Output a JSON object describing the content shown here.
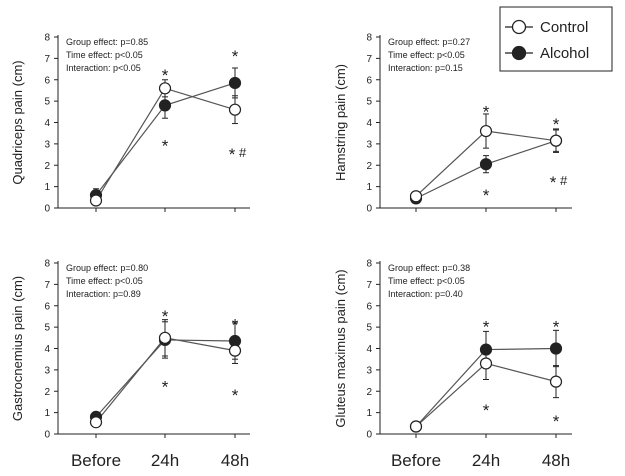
{
  "legend": {
    "items": [
      {
        "label": "Control",
        "fill": "#ffffff"
      },
      {
        "label": "Alcohol",
        "fill": "#222222"
      }
    ]
  },
  "x_categories": [
    "Before",
    "24h",
    "48h"
  ],
  "colors": {
    "line": "#555555",
    "ink": "#222222",
    "open": "#ffffff",
    "filled": "#222222"
  },
  "chart_data": [
    {
      "type": "line",
      "ylabel": "Quadriceps pain (cm)",
      "ylim": [
        0,
        8
      ],
      "yticks": [
        "0",
        "1",
        "2",
        "3",
        "4",
        "5",
        "6",
        "7",
        "8"
      ],
      "categories": [
        "Before",
        "24h",
        "48h"
      ],
      "stats": [
        "Group effect: p=0.85",
        "Time effect: p<0.05",
        "Interaction: p<0.05"
      ],
      "series": [
        {
          "name": "Control",
          "values": [
            0.35,
            5.6,
            4.6
          ],
          "errors": [
            0.15,
            0.4,
            0.65
          ]
        },
        {
          "name": "Alcohol",
          "values": [
            0.6,
            4.8,
            5.85
          ],
          "errors": [
            0.3,
            0.6,
            0.7
          ]
        }
      ],
      "annotations": [
        {
          "x": 1,
          "y": 6.5,
          "text": "*"
        },
        {
          "x": 1,
          "y": 3.2,
          "text": "*"
        },
        {
          "x": 2,
          "y": 7.4,
          "text": "*"
        },
        {
          "x": 2,
          "y": 2.8,
          "text": "*",
          "suffix": "#"
        }
      ]
    },
    {
      "type": "line",
      "ylabel": "Hamstring pain (cm)",
      "ylim": [
        0,
        8
      ],
      "yticks": [
        "0",
        "1",
        "2",
        "3",
        "4",
        "5",
        "6",
        "7",
        "8"
      ],
      "categories": [
        "Before",
        "24h",
        "48h"
      ],
      "stats": [
        "Group effect: p=0.27",
        "Time effect: p<0.05",
        "Interaction: p=0.15"
      ],
      "series": [
        {
          "name": "Control",
          "values": [
            0.55,
            3.6,
            3.15
          ],
          "errors": [
            0.1,
            0.8,
            0.5
          ]
        },
        {
          "name": "Alcohol",
          "values": [
            0.45,
            2.05,
            3.15
          ],
          "errors": [
            0.1,
            0.4,
            0.55
          ]
        }
      ],
      "annotations": [
        {
          "x": 1,
          "y": 4.8,
          "text": "*"
        },
        {
          "x": 1,
          "y": 0.9,
          "text": "*"
        },
        {
          "x": 2,
          "y": 4.2,
          "text": "*"
        },
        {
          "x": 2,
          "y": 1.5,
          "text": "*",
          "suffix": "#"
        }
      ]
    },
    {
      "type": "line",
      "ylabel": "Gastrocnemius pain (cm)",
      "ylim": [
        0,
        8
      ],
      "yticks": [
        "0",
        "1",
        "2",
        "3",
        "4",
        "5",
        "6",
        "7",
        "8"
      ],
      "categories": [
        "Before",
        "24h",
        "48h"
      ],
      "stats": [
        "Group effect: p=0.80",
        "Time effect: p<0.05",
        "Interaction: p=0.89"
      ],
      "series": [
        {
          "name": "Control",
          "values": [
            0.55,
            4.5,
            3.9
          ],
          "errors": [
            0.15,
            0.85,
            0.6
          ]
        },
        {
          "name": "Alcohol",
          "values": [
            0.8,
            4.4,
            4.35
          ],
          "errors": [
            0.15,
            0.85,
            0.85
          ]
        }
      ],
      "annotations": [
        {
          "x": 1,
          "y": 5.8,
          "text": "*"
        },
        {
          "x": 1,
          "y": 2.5,
          "text": "*"
        },
        {
          "x": 2,
          "y": 5.4,
          "text": "*"
        },
        {
          "x": 2,
          "y": 2.1,
          "text": "*"
        }
      ]
    },
    {
      "type": "line",
      "ylabel": "Gluteus maximus pain (cm)",
      "ylim": [
        0,
        8
      ],
      "yticks": [
        "0",
        "1",
        "2",
        "3",
        "4",
        "5",
        "6",
        "7",
        "8"
      ],
      "categories": [
        "Before",
        "24h",
        "48h"
      ],
      "stats": [
        "Group effect: p=0.38",
        "Time effect: p<0.05",
        "Interaction: p=0.40"
      ],
      "series": [
        {
          "name": "Control",
          "values": [
            0.35,
            3.3,
            2.45
          ],
          "errors": [
            0.05,
            0.75,
            0.75
          ]
        },
        {
          "name": "Alcohol",
          "values": [
            0.35,
            3.95,
            4.0
          ],
          "errors": [
            0.05,
            0.85,
            0.85
          ]
        }
      ],
      "annotations": [
        {
          "x": 1,
          "y": 5.3,
          "text": "*"
        },
        {
          "x": 1,
          "y": 1.4,
          "text": "*"
        },
        {
          "x": 2,
          "y": 5.3,
          "text": "*"
        },
        {
          "x": 2,
          "y": 0.9,
          "text": "*"
        }
      ]
    }
  ]
}
